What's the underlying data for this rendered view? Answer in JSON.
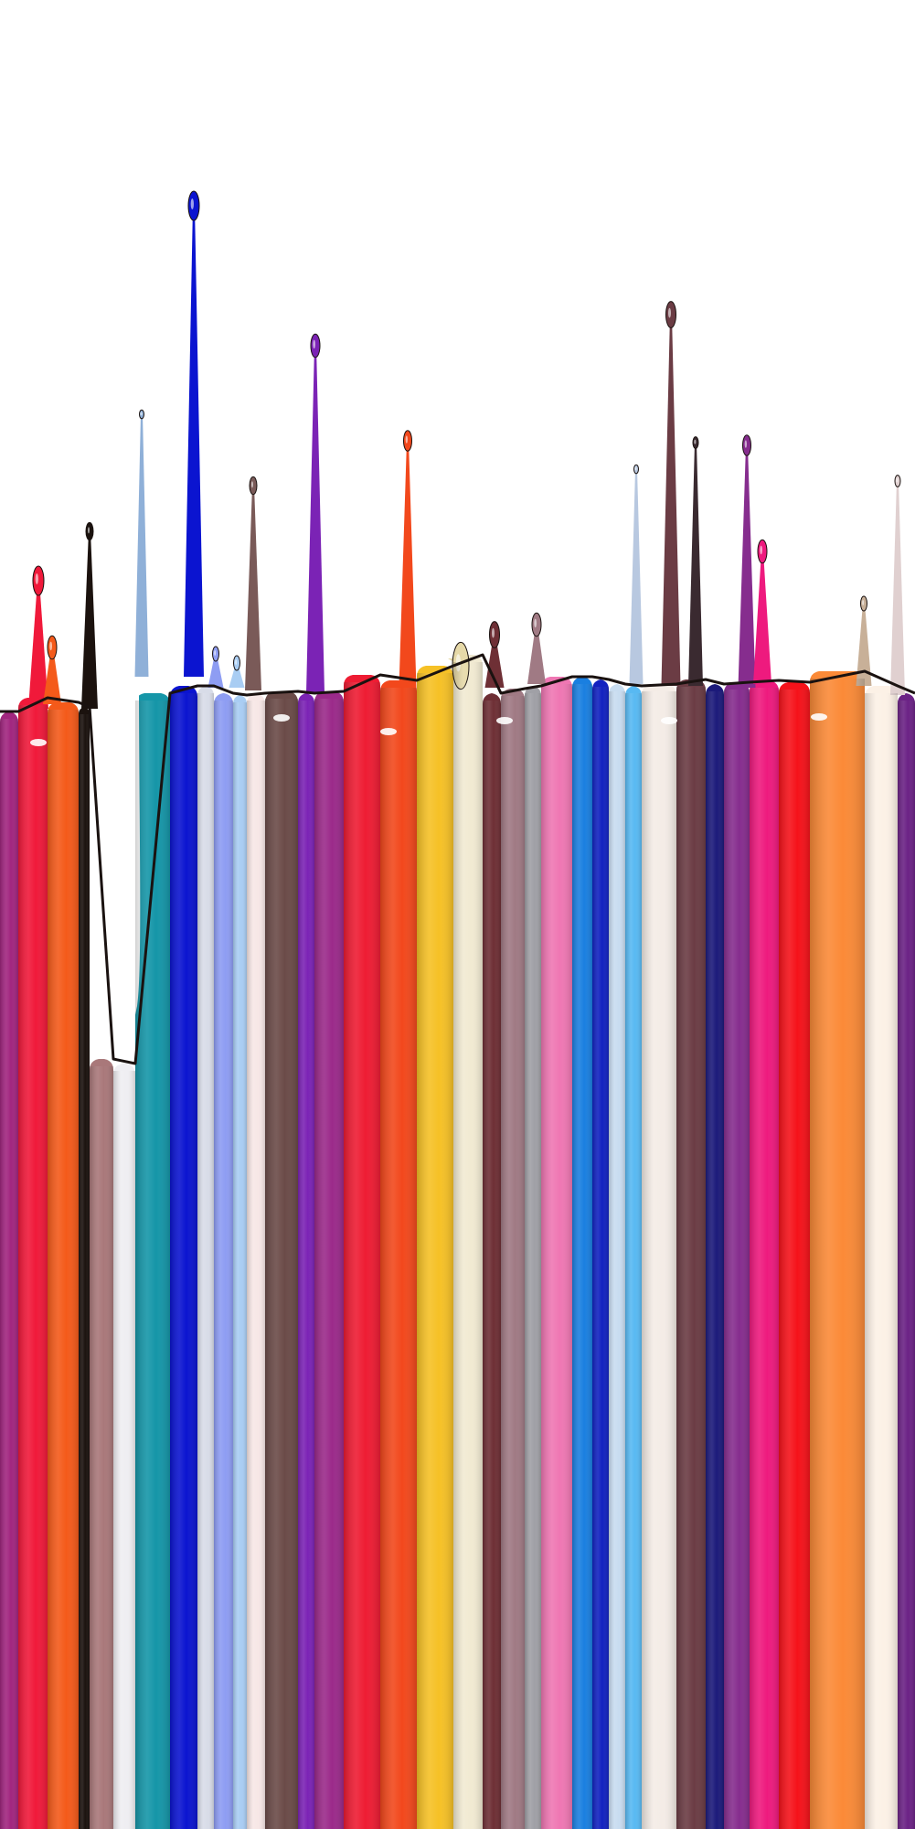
{
  "image": {
    "subject": "paint-drip-stripes",
    "background": "#ffffff",
    "stripes": [
      {
        "name": "magenta-purple",
        "color": "#a1267f"
      },
      {
        "name": "red",
        "color": "#f0193a"
      },
      {
        "name": "orange",
        "color": "#f45a1a"
      },
      {
        "name": "black",
        "color": "#1b120e"
      },
      {
        "name": "rose-brown",
        "color": "#a9787a"
      },
      {
        "name": "white-pearl",
        "color": "#efeef2"
      },
      {
        "name": "teal",
        "color": "#1596a8"
      },
      {
        "name": "royal-blue",
        "color": "#0b14d0"
      },
      {
        "name": "silver-blue",
        "color": "#d8dce8"
      },
      {
        "name": "periwinkle",
        "color": "#8e9df3"
      },
      {
        "name": "light-blue",
        "color": "#a9cdf3"
      },
      {
        "name": "blush-white",
        "color": "#f7e7e6"
      },
      {
        "name": "cocoa",
        "color": "#6b4b48"
      },
      {
        "name": "violet",
        "color": "#7b23b5"
      },
      {
        "name": "plum",
        "color": "#9b2a8a"
      },
      {
        "name": "crimson",
        "color": "#ee1c33"
      },
      {
        "name": "vermilion",
        "color": "#f2481c"
      },
      {
        "name": "gold",
        "color": "#f6c126"
      },
      {
        "name": "cream",
        "color": "#f1ead2"
      },
      {
        "name": "oxblood",
        "color": "#6e2f35"
      },
      {
        "name": "mauve-shimmer",
        "color": "#a07a84"
      },
      {
        "name": "grey-silver",
        "color": "#a0a0a6"
      },
      {
        "name": "pink",
        "color": "#ef77b3"
      },
      {
        "name": "azure",
        "color": "#1a7fe0"
      },
      {
        "name": "navy-blue",
        "color": "#1222c0"
      },
      {
        "name": "ice-blue",
        "color": "#c8dcf0"
      },
      {
        "name": "sky-blue",
        "color": "#58b9f2"
      },
      {
        "name": "pale-beige",
        "color": "#f4ece6"
      },
      {
        "name": "plum-brown",
        "color": "#6b3c44"
      },
      {
        "name": "indigo",
        "color": "#1c1a7a"
      },
      {
        "name": "berry-purple",
        "color": "#862d8e"
      },
      {
        "name": "hot-pink",
        "color": "#ee1a7e"
      },
      {
        "name": "bright-red",
        "color": "#f5121a"
      },
      {
        "name": "tangerine",
        "color": "#fb8a37"
      },
      {
        "name": "ivory",
        "color": "#fcf1e6"
      },
      {
        "name": "deep-purple",
        "color": "#6b2285"
      }
    ]
  }
}
